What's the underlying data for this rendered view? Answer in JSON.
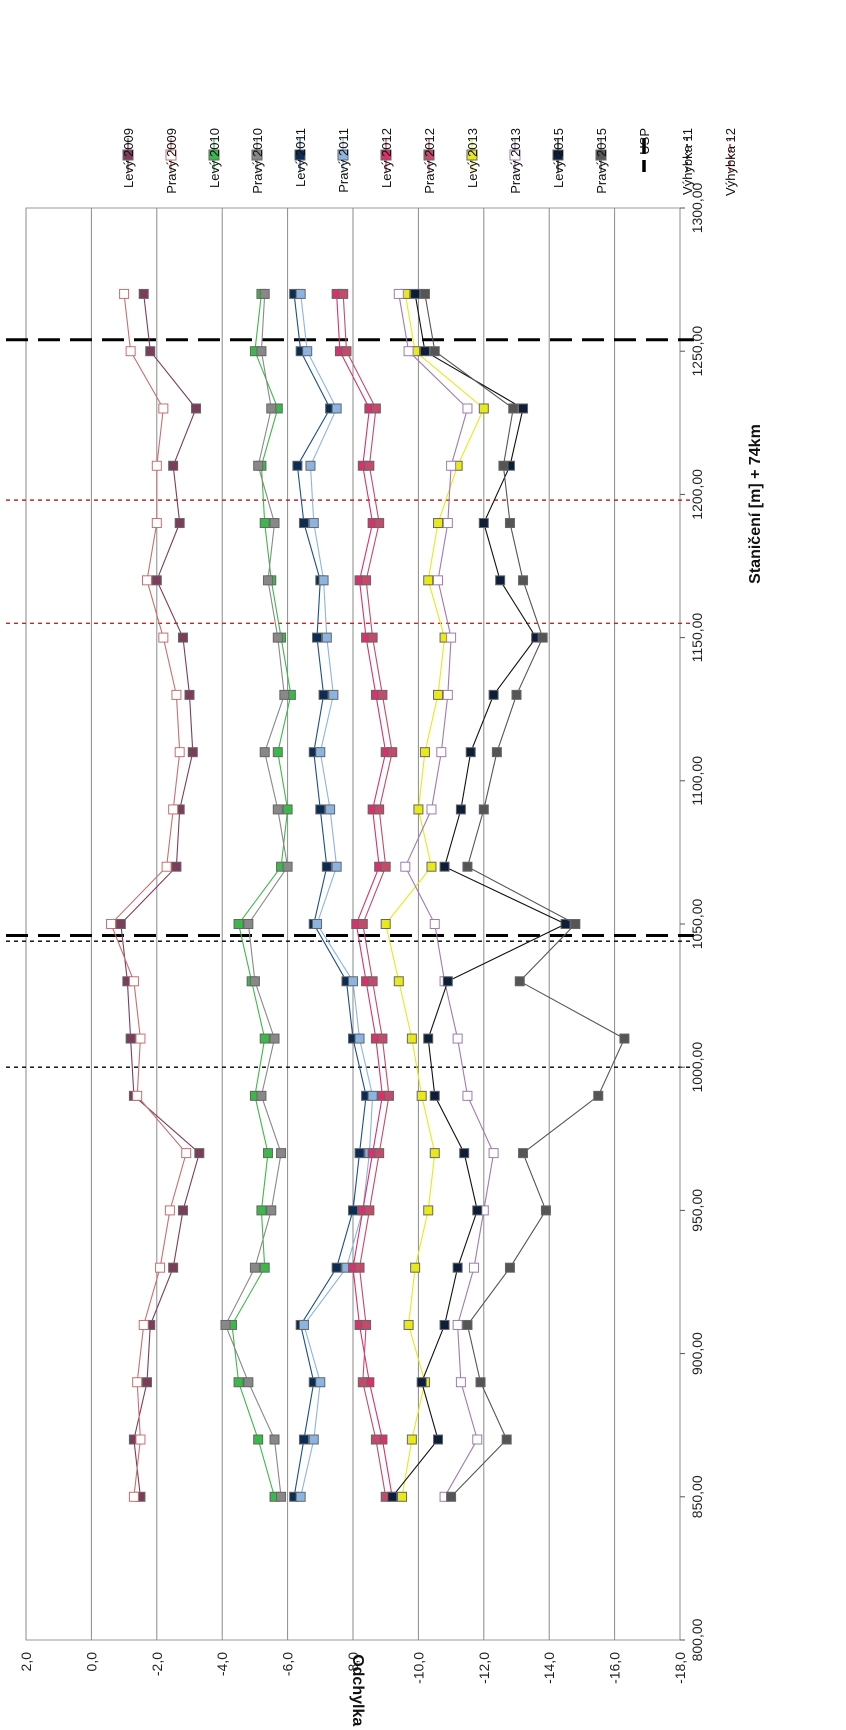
{
  "chart_data": {
    "type": "line",
    "orientation": "rotated-90-ccw",
    "xlabel": "Staničení [m] + 74km",
    "ylabel": "Odchylka [mm]",
    "xlim": [
      800,
      1300
    ],
    "ylim": [
      -18,
      2
    ],
    "x_ticks": [
      "800,00",
      "850,00",
      "900,00",
      "950,00",
      "1000,00",
      "1050,00",
      "1100,00",
      "1150,00",
      "1200,00",
      "1250,00",
      "1300,00"
    ],
    "y_ticks": [
      "2,0",
      "0,0",
      "-2,0",
      "-4,0",
      "-6,0",
      "-8,0",
      "-10,0",
      "-12,0",
      "-14,0",
      "-16,0",
      "-18,0"
    ],
    "grid": "horizontal",
    "legend_position": "right",
    "x": [
      850,
      870,
      890,
      910,
      930,
      950,
      970,
      990,
      1010,
      1030,
      1050,
      1070,
      1090,
      1110,
      1130,
      1150,
      1170,
      1190,
      1210,
      1230,
      1250,
      1270
    ],
    "series": [
      {
        "name": "Levý 2009",
        "color": "#7b3d5a",
        "marker": "square-filled",
        "values": [
          -1.5,
          -1.3,
          -1.7,
          -1.8,
          -2.5,
          -2.8,
          -3.3,
          -1.3,
          -1.2,
          -1.1,
          -0.9,
          -2.6,
          -2.7,
          -3.1,
          -3.0,
          -2.8,
          -2.0,
          -2.7,
          -2.5,
          -3.2,
          -1.8,
          -1.6
        ]
      },
      {
        "name": "Pravý 2009",
        "color": "#c86f6f",
        "marker": "square-open-pink",
        "values": [
          -1.3,
          -1.5,
          -1.4,
          -1.6,
          -2.1,
          -2.4,
          -2.9,
          -1.4,
          -1.5,
          -1.3,
          -0.6,
          -2.3,
          -2.5,
          -2.7,
          -2.6,
          -2.2,
          -1.7,
          -2.0,
          -2.0,
          -2.2,
          -1.2,
          -1.0
        ]
      },
      {
        "name": "Levý 2010",
        "color": "#3cb84a",
        "marker": "square-filled",
        "values": [
          -5.6,
          -5.1,
          -4.5,
          -4.3,
          -5.3,
          -5.2,
          -5.4,
          -5.0,
          -5.3,
          -4.9,
          -4.5,
          -5.8,
          -6.0,
          -5.7,
          -6.1,
          -5.8,
          -5.5,
          -5.3,
          -5.2,
          -5.7,
          -5.0,
          -5.2
        ]
      },
      {
        "name": "Pravý 2010",
        "color": "#888888",
        "marker": "square-filled",
        "values": [
          -5.8,
          -5.6,
          -4.8,
          -4.1,
          -5.0,
          -5.5,
          -5.8,
          -5.2,
          -5.6,
          -5.0,
          -4.8,
          -6.0,
          -5.7,
          -5.3,
          -5.9,
          -5.7,
          -5.4,
          -5.6,
          -5.1,
          -5.5,
          -5.2,
          -5.3
        ]
      },
      {
        "name": "Levý 2011",
        "color": "#1a4f8a",
        "marker": "square-filled-dark",
        "values": [
          -6.2,
          -6.5,
          -6.8,
          -6.4,
          -7.5,
          -8.0,
          -8.2,
          -8.4,
          -8.0,
          -7.8,
          -6.8,
          -7.2,
          -7.0,
          -6.8,
          -7.1,
          -6.9,
          -7.0,
          -6.5,
          -6.3,
          -7.3,
          -6.4,
          -6.2
        ]
      },
      {
        "name": "Pravý 2011",
        "color": "#8cb4e0",
        "marker": "square-filled",
        "values": [
          -6.4,
          -6.8,
          -7.0,
          -6.5,
          -7.8,
          -8.3,
          -8.5,
          -8.6,
          -8.2,
          -8.0,
          -6.9,
          -7.5,
          -7.3,
          -7.0,
          -7.4,
          -7.2,
          -7.1,
          -6.8,
          -6.7,
          -7.5,
          -6.6,
          -6.4
        ]
      },
      {
        "name": "Levý 2012",
        "color": "#d8316b",
        "marker": "square-filled",
        "values": [
          -9.2,
          -8.9,
          -8.5,
          -8.2,
          -8.0,
          -8.3,
          -8.6,
          -8.9,
          -8.7,
          -8.4,
          -8.1,
          -8.8,
          -8.6,
          -9.0,
          -8.7,
          -8.4,
          -8.2,
          -8.6,
          -8.3,
          -8.5,
          -7.6,
          -7.5
        ]
      },
      {
        "name": "Pravý 2012",
        "color": "#c24a6a",
        "marker": "square-filled-pink",
        "values": [
          -9.0,
          -8.7,
          -8.3,
          -8.4,
          -8.2,
          -8.5,
          -8.8,
          -9.1,
          -8.9,
          -8.6,
          -8.3,
          -9.0,
          -8.8,
          -9.2,
          -8.9,
          -8.6,
          -8.4,
          -8.8,
          -8.5,
          -8.7,
          -7.8,
          -7.7
        ]
      },
      {
        "name": "Levý 2013",
        "color": "#e8e81a",
        "marker": "square-filled",
        "values": [
          -9.5,
          -9.8,
          -10.2,
          -9.7,
          -9.9,
          -10.3,
          -10.5,
          -10.1,
          -9.8,
          -9.4,
          -9.0,
          -10.4,
          -10.0,
          -10.2,
          -10.6,
          -10.8,
          -10.3,
          -10.6,
          -11.2,
          -12.0,
          -9.9,
          -9.6
        ]
      },
      {
        "name": "Pravý 2013",
        "color": "#a07ab0",
        "marker": "square-open",
        "values": [
          -10.8,
          -11.8,
          -11.3,
          -11.2,
          -11.7,
          -12.0,
          -12.3,
          -11.5,
          -11.2,
          -10.8,
          -10.5,
          -9.6,
          -10.4,
          -10.7,
          -10.9,
          -11.0,
          -10.6,
          -10.9,
          -11.0,
          -11.5,
          -9.7,
          -9.4
        ]
      },
      {
        "name": "Levý 2015",
        "color": "#111111",
        "marker": "square-filled-black",
        "values": [
          -9.2,
          -10.6,
          -10.1,
          -10.8,
          -11.2,
          -11.8,
          -11.4,
          -10.5,
          -10.3,
          -10.9,
          -14.5,
          -10.8,
          -11.3,
          -11.6,
          -12.3,
          -13.6,
          -12.5,
          -12.0,
          -12.8,
          -13.2,
          -10.2,
          -9.9
        ]
      },
      {
        "name": "Pravý 2015",
        "color": "#555555",
        "marker": "square-filled",
        "values": [
          -11.0,
          -12.7,
          -11.9,
          -11.5,
          -12.8,
          -13.9,
          -13.2,
          -15.5,
          -16.3,
          -13.1,
          -14.8,
          -11.5,
          -12.0,
          -12.4,
          -13.0,
          -13.8,
          -13.2,
          -12.8,
          -12.6,
          -12.9,
          -10.5,
          -10.2
        ]
      }
    ],
    "vertical_lines": [
      {
        "name": "USP",
        "color": "#000000",
        "style": "long-dash-thick",
        "x": [
          1046,
          1254
        ]
      },
      {
        "name": "Výhybka 11",
        "color": "#000000",
        "style": "dotted",
        "x": [
          1000,
          1044
        ]
      },
      {
        "name": "Výhybka 12",
        "color": "#cc2222",
        "style": "dotted",
        "x": [
          1155,
          1198
        ]
      }
    ]
  }
}
